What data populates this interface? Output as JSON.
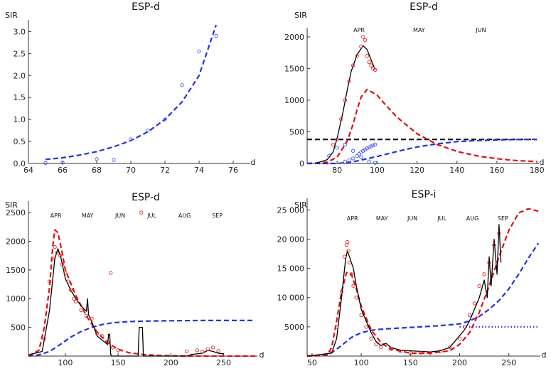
{
  "chart_data": [
    {
      "id": "p1",
      "type": "scatter",
      "title": "ESP-d",
      "ylabel": "SIR",
      "xlabel": "d",
      "xlim": [
        64,
        77
      ],
      "ylim": [
        0,
        3.2
      ],
      "xticks": [
        64,
        66,
        68,
        70,
        72,
        74,
        76
      ],
      "yticks": [
        0.0,
        0.5,
        1.0,
        1.5,
        2.0,
        2.5,
        3.0
      ],
      "ytick_labels": [
        "0.0",
        "0.5",
        "1.0",
        "1.5",
        "2.0",
        "2.5",
        "3.0"
      ],
      "months": [],
      "series": [
        {
          "name": "fit",
          "kind": "line",
          "style": "dashed",
          "color": "#2233dd",
          "x": [
            65,
            66,
            67,
            68,
            69,
            70,
            71,
            72,
            73,
            74,
            75
          ],
          "y": [
            0.09,
            0.13,
            0.19,
            0.27,
            0.38,
            0.52,
            0.72,
            1.0,
            1.4,
            2.0,
            3.15
          ]
        },
        {
          "name": "data",
          "kind": "points",
          "color": "#4455ee",
          "x": [
            65,
            66,
            68,
            69,
            70,
            71,
            72,
            73,
            74,
            75
          ],
          "y": [
            0.01,
            0.02,
            0.1,
            0.08,
            0.55,
            0.75,
            1.0,
            1.78,
            2.55,
            2.9
          ]
        }
      ]
    },
    {
      "id": "p2",
      "type": "line",
      "title": "ESP-d",
      "ylabel": "SIR",
      "xlabel": "d",
      "xlim": [
        65,
        181
      ],
      "ylim": [
        0,
        2100
      ],
      "xticks": [
        80,
        100,
        120,
        140,
        160,
        180
      ],
      "yticks": [
        0,
        500,
        1000,
        1500,
        2000
      ],
      "ytick_labels": [
        "0",
        "500",
        "1000",
        "1500",
        "2000"
      ],
      "months": [
        {
          "label": "APR",
          "x": 91
        },
        {
          "label": "MAY",
          "x": 121
        },
        {
          "label": "JUN",
          "x": 152
        }
      ],
      "series": [
        {
          "name": "reference",
          "kind": "line",
          "style": "dashed",
          "color": "#000000",
          "x": [
            65,
            180
          ],
          "y": [
            380,
            380
          ]
        },
        {
          "name": "infected-model",
          "kind": "line",
          "style": "dashed",
          "color": "#dd1111",
          "x": [
            65,
            75,
            80,
            85,
            88,
            90,
            92,
            95,
            100,
            105,
            110,
            120,
            130,
            140,
            150,
            160,
            170,
            180
          ],
          "y": [
            0,
            20,
            100,
            350,
            620,
            850,
            1050,
            1170,
            1080,
            900,
            730,
            470,
            300,
            190,
            120,
            75,
            45,
            30
          ]
        },
        {
          "name": "recovered-model",
          "kind": "line",
          "style": "dashed",
          "color": "#2233dd",
          "x": [
            65,
            80,
            85,
            90,
            95,
            100,
            110,
            120,
            130,
            140,
            150,
            160,
            170,
            180
          ],
          "y": [
            0,
            0,
            15,
            40,
            75,
            110,
            190,
            260,
            310,
            345,
            362,
            372,
            378,
            382
          ]
        },
        {
          "name": "fitted",
          "kind": "line",
          "style": "solid",
          "color": "#000000",
          "x": [
            70,
            75,
            78,
            80,
            83,
            85,
            87,
            90,
            93,
            95,
            97,
            99
          ],
          "y": [
            10,
            60,
            180,
            400,
            820,
            1150,
            1450,
            1720,
            1860,
            1800,
            1640,
            1480
          ]
        },
        {
          "name": "infected-data",
          "kind": "points",
          "color": "#ee2222",
          "x": [
            78,
            80,
            82,
            84,
            86,
            88,
            90,
            92,
            93,
            94,
            95,
            96,
            97,
            98,
            99
          ],
          "y": [
            300,
            380,
            700,
            1000,
            1300,
            1550,
            1700,
            1850,
            2000,
            1950,
            1700,
            1600,
            1550,
            1500,
            1480
          ]
        },
        {
          "name": "recovered-data",
          "kind": "points",
          "color": "#4455ee",
          "x": [
            84,
            86,
            88,
            90,
            91,
            92,
            93,
            94,
            95,
            96,
            97,
            98,
            99
          ],
          "y": [
            30,
            50,
            80,
            120,
            150,
            180,
            200,
            220,
            240,
            255,
            270,
            285,
            300
          ]
        },
        {
          "name": "deceased-data",
          "kind": "points",
          "color": "#4455ee",
          "x": [
            76,
            80,
            84,
            88,
            92,
            96,
            99
          ],
          "y": [
            120,
            250,
            300,
            200,
            100,
            30,
            10
          ]
        }
      ]
    },
    {
      "id": "p3",
      "type": "line",
      "title": "ESP-d",
      "ylabel": "SIR",
      "xlabel": "d",
      "xlim": [
        65,
        282
      ],
      "ylim": [
        0,
        2650
      ],
      "xticks": [
        100,
        150,
        200,
        250
      ],
      "yticks": [
        500,
        1000,
        1500,
        2000,
        2500
      ],
      "ytick_labels": [
        "500",
        "1000",
        "1500",
        "2000",
        "2500"
      ],
      "months": [
        {
          "label": "APR",
          "x": 91
        },
        {
          "label": "MAY",
          "x": 121
        },
        {
          "label": "JUN",
          "x": 152
        },
        {
          "label": "JUL",
          "x": 182
        },
        {
          "label": "AUG",
          "x": 213
        },
        {
          "label": "SEP",
          "x": 244
        }
      ],
      "series": [
        {
          "name": "recovered-model",
          "kind": "line",
          "style": "dashed",
          "color": "#2233dd",
          "x": [
            65,
            75,
            85,
            95,
            105,
            115,
            125,
            135,
            145,
            160,
            180,
            200,
            230,
            280
          ],
          "y": [
            0,
            20,
            80,
            200,
            330,
            430,
            500,
            550,
            580,
            600,
            610,
            615,
            620,
            620
          ]
        },
        {
          "name": "infected-model",
          "kind": "line",
          "style": "dashed",
          "color": "#dd1111",
          "x": [
            65,
            75,
            80,
            85,
            88,
            90,
            93,
            97,
            100,
            110,
            120,
            130,
            140,
            150,
            160,
            175,
            190,
            210,
            230,
            280
          ],
          "y": [
            0,
            100,
            500,
            1200,
            1900,
            2200,
            2150,
            1800,
            1500,
            1050,
            700,
            420,
            230,
            120,
            60,
            25,
            10,
            3,
            0,
            0
          ]
        },
        {
          "name": "fitted",
          "kind": "line",
          "style": "solid",
          "color": "#000000",
          "x": [
            65,
            78,
            85,
            90,
            93,
            96,
            100,
            105,
            110,
            115,
            120,
            121,
            122,
            125,
            130,
            140,
            141,
            142,
            143,
            144,
            150,
            160,
            169,
            170,
            172,
            173,
            174,
            180,
            200,
            215,
            220,
            230,
            235,
            240,
            245,
            250
          ],
          "y": [
            20,
            80,
            800,
            1700,
            1870,
            1700,
            1350,
            1150,
            1000,
            870,
            780,
            1000,
            720,
            600,
            350,
            200,
            380,
            380,
            30,
            0,
            0,
            0,
            0,
            500,
            500,
            500,
            0,
            0,
            0,
            0,
            30,
            50,
            100,
            80,
            50,
            40
          ]
        },
        {
          "name": "infected-data",
          "kind": "points",
          "color": "#ee2222",
          "x": [
            80,
            85,
            88,
            90,
            92,
            95,
            97,
            100,
            103,
            105,
            108,
            110,
            115,
            120,
            125,
            130,
            135,
            140,
            143,
            145,
            150,
            172,
            215,
            225,
            230,
            235,
            240,
            245
          ],
          "y": [
            300,
            1300,
            1700,
            1900,
            1800,
            1750,
            1600,
            1450,
            1300,
            1150,
            1000,
            950,
            800,
            700,
            650,
            400,
            350,
            250,
            1450,
            150,
            100,
            2500,
            80,
            100,
            80,
            120,
            150,
            90
          ]
        }
      ]
    },
    {
      "id": "p4",
      "type": "line",
      "title": "ESP-i",
      "ylabel": "SIR",
      "xlabel": "d",
      "xlim": [
        45,
        282
      ],
      "ylim": [
        0,
        26500
      ],
      "xticks": [
        50,
        100,
        150,
        200,
        250
      ],
      "yticks": [
        5000,
        10000,
        15000,
        20000,
        25000
      ],
      "ytick_labels": [
        "5000",
        "10 000",
        "15 000",
        "20 000",
        "25 000"
      ],
      "months": [
        {
          "label": "APR",
          "x": 91
        },
        {
          "label": "MAY",
          "x": 121
        },
        {
          "label": "JUN",
          "x": 152
        },
        {
          "label": "JUL",
          "x": 182
        },
        {
          "label": "AUG",
          "x": 213
        },
        {
          "label": "SEP",
          "x": 244
        }
      ],
      "series": [
        {
          "name": "recovered-asymptote",
          "kind": "line",
          "style": "dotted",
          "color": "#2233dd",
          "x": [
            200,
            280
          ],
          "y": [
            5000,
            5000
          ]
        },
        {
          "name": "recovered-model",
          "kind": "line",
          "style": "dashed",
          "color": "#2233dd",
          "x": [
            45,
            60,
            70,
            80,
            90,
            100,
            110,
            120,
            140,
            160,
            180,
            200,
            210,
            220,
            230,
            240,
            250,
            260,
            270,
            280
          ],
          "y": [
            0,
            100,
            600,
            1800,
            3200,
            4000,
            4400,
            4600,
            4800,
            5000,
            5200,
            5500,
            6000,
            6800,
            8000,
            9500,
            11500,
            14000,
            16800,
            19300
          ]
        },
        {
          "name": "infected-model",
          "kind": "line",
          "style": "dashed",
          "color": "#dd1111",
          "x": [
            45,
            65,
            70,
            75,
            80,
            85,
            90,
            95,
            100,
            110,
            120,
            130,
            150,
            170,
            190,
            200,
            210,
            220,
            230,
            240,
            250,
            260,
            270,
            280
          ],
          "y": [
            0,
            100,
            1500,
            6000,
            11000,
            14300,
            14000,
            11500,
            8500,
            4500,
            2300,
            1200,
            500,
            500,
            900,
            2000,
            4000,
            7500,
            12000,
            17000,
            21500,
            24500,
            25200,
            24800
          ]
        },
        {
          "name": "fitted",
          "kind": "line",
          "style": "solid",
          "color": "#000000",
          "x": [
            45,
            70,
            75,
            80,
            84,
            86,
            88,
            92,
            95,
            100,
            105,
            110,
            115,
            120,
            125,
            130,
            140,
            150,
            160,
            170,
            180,
            190,
            200,
            205,
            210,
            215,
            220,
            225,
            228,
            230,
            232,
            235,
            238,
            240,
            242
          ],
          "y": [
            0,
            500,
            3000,
            10000,
            16500,
            18000,
            17000,
            15000,
            12000,
            8000,
            6000,
            4000,
            2500,
            1800,
            2200,
            1500,
            1000,
            900,
            800,
            700,
            900,
            1500,
            3500,
            4500,
            6000,
            8000,
            10000,
            13000,
            10000,
            17000,
            12000,
            20000,
            14000,
            22500,
            16000
          ]
        },
        {
          "name": "infected-data",
          "kind": "points",
          "color": "#ee2222",
          "x": [
            70,
            75,
            80,
            83,
            85,
            86,
            87,
            88,
            90,
            92,
            95,
            100,
            105,
            110,
            115,
            120,
            130,
            140,
            150,
            160,
            170,
            180,
            190,
            200,
            205,
            210,
            215,
            220,
            225,
            230,
            235,
            240
          ],
          "y": [
            1000,
            5000,
            11000,
            17000,
            19000,
            19500,
            18000,
            16000,
            14000,
            12000,
            10000,
            7000,
            5000,
            3000,
            2000,
            1500,
            1200,
            800,
            500,
            600,
            500,
            800,
            1500,
            3000,
            5000,
            7000,
            9000,
            12000,
            14000,
            16000,
            19000,
            21000
          ]
        }
      ]
    }
  ]
}
